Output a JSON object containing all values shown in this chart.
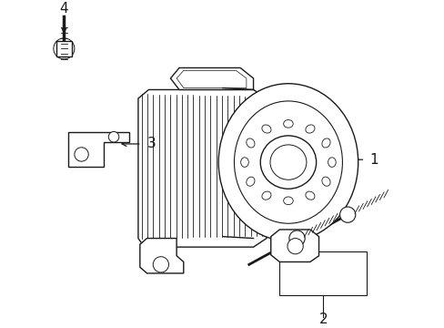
{
  "background_color": "#ffffff",
  "line_color": "#1a1a1a",
  "lw": 1.0,
  "figsize": [
    4.89,
    3.6
  ],
  "dpi": 100,
  "xlim": [
    0,
    489
  ],
  "ylim": [
    0,
    360
  ]
}
